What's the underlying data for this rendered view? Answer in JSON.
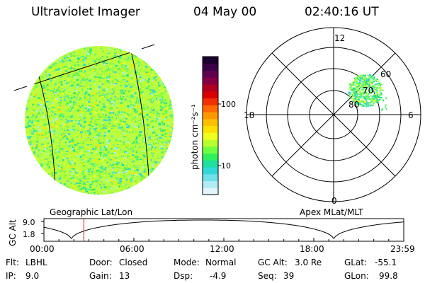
{
  "header": {
    "instrument": "Ultraviolet Imager",
    "date": "04 May 00",
    "time": "02:40:16 UT"
  },
  "left_panel": {
    "label": "Geographic Lat/Lon"
  },
  "colorbar": {
    "unit_label": "photon cm⁻²s⁻¹",
    "ticks": [
      "100",
      "10"
    ],
    "colors": [
      "#1a0030",
      "#3a0048",
      "#600050",
      "#850040",
      "#b00020",
      "#d80000",
      "#f03000",
      "#ff6a00",
      "#ff9800",
      "#ffc000",
      "#ffe000",
      "#f0ff20",
      "#b8ff30",
      "#70ff40",
      "#30f060",
      "#20e0a0",
      "#30d8d8",
      "#70e0ec",
      "#b0ecf4",
      "#e0f6fa"
    ]
  },
  "polar_plot": {
    "label": "Apex MLat/MLT",
    "mlt_labels": {
      "top": "12",
      "left": "18",
      "right": "6",
      "bottom": "0"
    },
    "lat_labels": [
      "60",
      "70",
      "80"
    ]
  },
  "timeline": {
    "ylabel": "GC Alt",
    "yticks": [
      "9.0",
      "1.8"
    ],
    "xticks": [
      "00:00",
      "06:00",
      "12:00",
      "18:00",
      "23:59"
    ],
    "marker_time": "02:40",
    "marker_color": "#cc2020"
  },
  "info": {
    "row1": [
      {
        "key": "Flt:",
        "value": "LBHL"
      },
      {
        "key": "Door:",
        "value": "Closed"
      },
      {
        "key": "Mode:",
        "value": "Normal"
      },
      {
        "key": "GC Alt:",
        "value": "3.0 Re"
      },
      {
        "key": "GLat:",
        "value": "-55.1"
      }
    ],
    "row2": [
      {
        "key": "IP:",
        "value": "9.0"
      },
      {
        "key": "Gain:",
        "value": "13"
      },
      {
        "key": "Dsp:",
        "value": "-4.9"
      },
      {
        "key": "Seq:",
        "value": "39"
      },
      {
        "key": "GLon:",
        "value": "99.8"
      }
    ]
  }
}
